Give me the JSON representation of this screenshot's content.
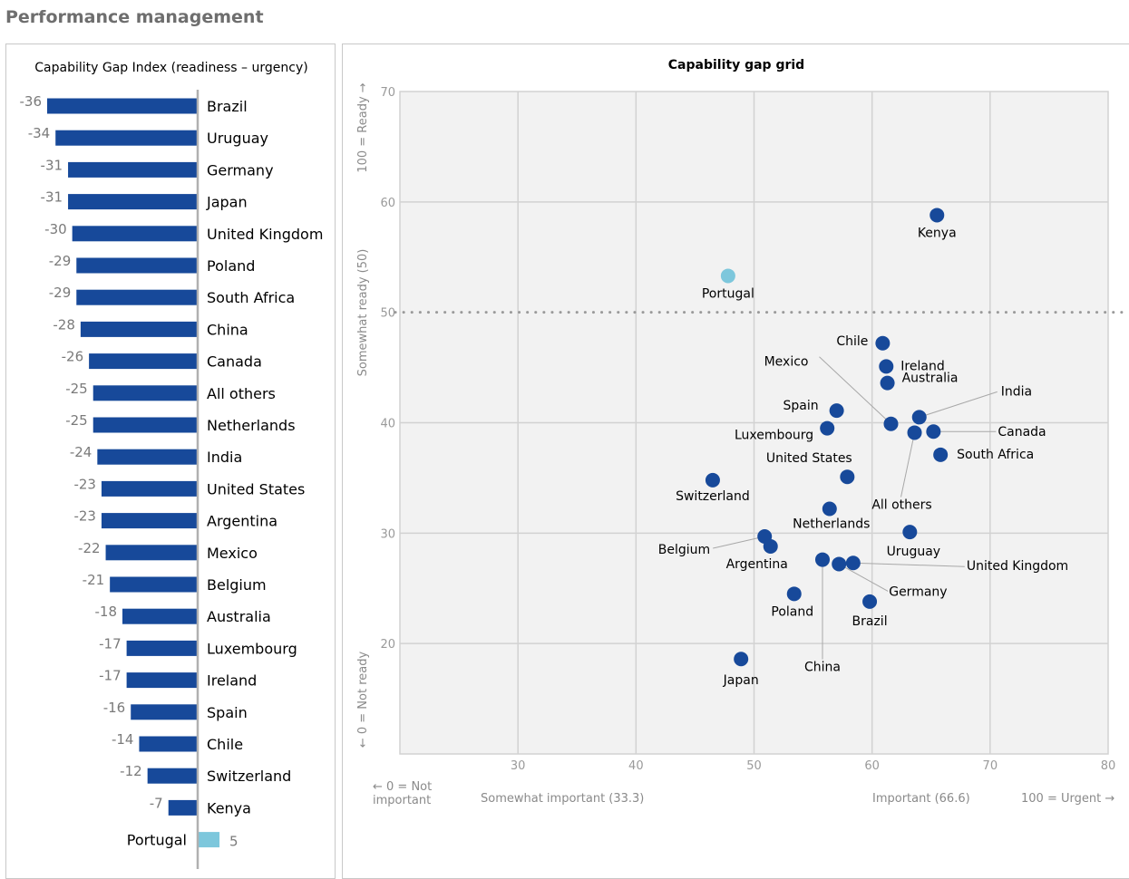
{
  "page_title": "Performance management",
  "colors": {
    "bar": "#17499a",
    "highlight": "#7dc7dc",
    "grid_bg": "#f2f2f2",
    "grid_line": "#d2d2d2",
    "axis_text": "#9a9a9a",
    "dot": "#17499a"
  },
  "chart_data": [
    {
      "type": "bar",
      "orientation": "horizontal",
      "title": "Capability Gap Index (readiness – urgency)",
      "categories": [
        "Brazil",
        "Uruguay",
        "Germany",
        "Japan",
        "United Kingdom",
        "Poland",
        "South Africa",
        "China",
        "Canada",
        "All others",
        "Netherlands",
        "India",
        "United States",
        "Argentina",
        "Mexico",
        "Belgium",
        "Australia",
        "Luxembourg",
        "Ireland",
        "Spain",
        "Chile",
        "Switzerland",
        "Kenya",
        "Portugal"
      ],
      "values": [
        -36,
        -34,
        -31,
        -31,
        -30,
        -29,
        -29,
        -28,
        -26,
        -25,
        -25,
        -24,
        -23,
        -23,
        -22,
        -21,
        -18,
        -17,
        -17,
        -16,
        -14,
        -12,
        -7,
        5
      ],
      "highlight": "Portugal"
    },
    {
      "type": "scatter",
      "title": "Capability gap grid",
      "xlim": [
        20,
        80
      ],
      "ylim": [
        10,
        70
      ],
      "x_ticks": [
        30,
        40,
        50,
        60,
        70,
        80
      ],
      "y_ticks": [
        20,
        30,
        40,
        50,
        60,
        70
      ],
      "x_axis_labels": [
        "← 0 = Not important",
        "Somewhat important (33.3)",
        "Important (66.6)",
        "100 = Urgent →"
      ],
      "y_axis_labels": [
        "100 = Ready →",
        "Somewhat ready (50)",
        "← 0 = Not ready"
      ],
      "reference_line_y": 50,
      "points": [
        {
          "label": "Kenya",
          "x": 65.5,
          "y": 58.8
        },
        {
          "label": "Portugal",
          "x": 47.8,
          "y": 53.3,
          "highlight": true
        },
        {
          "label": "Chile",
          "x": 60.9,
          "y": 47.2
        },
        {
          "label": "Ireland",
          "x": 61.2,
          "y": 45.1
        },
        {
          "label": "Australia",
          "x": 61.3,
          "y": 43.6
        },
        {
          "label": "Spain",
          "x": 57.0,
          "y": 41.1
        },
        {
          "label": "Luxembourg",
          "x": 56.2,
          "y": 39.5
        },
        {
          "label": "Mexico",
          "x": 61.6,
          "y": 39.9
        },
        {
          "label": "India",
          "x": 64.0,
          "y": 40.5
        },
        {
          "label": "Canada",
          "x": 65.2,
          "y": 39.2
        },
        {
          "label": "All others",
          "x": 63.6,
          "y": 39.1
        },
        {
          "label": "South Africa",
          "x": 65.8,
          "y": 37.1
        },
        {
          "label": "United States",
          "x": 57.9,
          "y": 35.1
        },
        {
          "label": "Switzerland",
          "x": 46.5,
          "y": 34.8
        },
        {
          "label": "Netherlands",
          "x": 56.4,
          "y": 32.2
        },
        {
          "label": "Uruguay",
          "x": 63.2,
          "y": 30.1
        },
        {
          "label": "Belgium",
          "x": 50.9,
          "y": 29.7
        },
        {
          "label": "Argentina",
          "x": 51.4,
          "y": 28.8
        },
        {
          "label": "China",
          "x": 55.8,
          "y": 27.6
        },
        {
          "label": "Germany",
          "x": 57.2,
          "y": 27.2
        },
        {
          "label": "United Kingdom",
          "x": 58.4,
          "y": 27.3
        },
        {
          "label": "Poland",
          "x": 53.4,
          "y": 24.5
        },
        {
          "label": "Brazil",
          "x": 59.8,
          "y": 23.8
        },
        {
          "label": "Japan",
          "x": 48.9,
          "y": 18.6
        }
      ]
    }
  ]
}
